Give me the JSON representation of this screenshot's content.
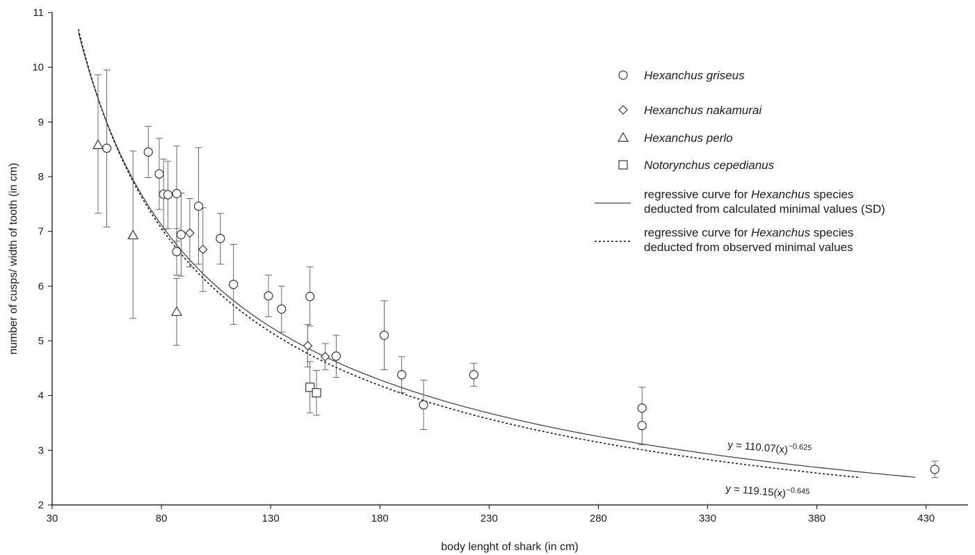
{
  "chart_data": {
    "type": "scatter",
    "title": "",
    "xlabel": "body lenght of shark (in cm)",
    "ylabel": "number of cusps/ width of tooth (in cm)",
    "xlim": [
      30,
      450
    ],
    "ylim": [
      2,
      11
    ],
    "xticks": [
      30,
      80,
      130,
      180,
      230,
      280,
      330,
      380,
      430
    ],
    "yticks": [
      2,
      3,
      4,
      5,
      6,
      7,
      8,
      9,
      10,
      11
    ],
    "grid": false,
    "legend_position": "top-right",
    "series": [
      {
        "name": "Hexanchus griseus",
        "marker": "circle",
        "points": [
          {
            "x": 55,
            "y": 8.52,
            "lo": 7.08,
            "hi": 9.95
          },
          {
            "x": 74,
            "y": 8.45,
            "lo": 7.98,
            "hi": 8.92
          },
          {
            "x": 79,
            "y": 8.05,
            "lo": 7.4,
            "hi": 8.7
          },
          {
            "x": 81,
            "y": 7.68,
            "lo": 7.03,
            "hi": 8.32
          },
          {
            "x": 83,
            "y": 7.67,
            "lo": 7.05,
            "hi": 8.28
          },
          {
            "x": 87,
            "y": 7.69,
            "lo": 6.82,
            "hi": 8.56
          },
          {
            "x": 87,
            "y": 6.63,
            "lo": 6.2,
            "hi": 7.05
          },
          {
            "x": 89,
            "y": 6.94,
            "lo": 6.18,
            "hi": 7.7
          },
          {
            "x": 97,
            "y": 7.46,
            "lo": 6.4,
            "hi": 8.53
          },
          {
            "x": 107,
            "y": 6.87,
            "lo": 6.4,
            "hi": 7.33
          },
          {
            "x": 113,
            "y": 6.03,
            "lo": 5.3,
            "hi": 6.76
          },
          {
            "x": 129,
            "y": 5.82,
            "lo": 5.44,
            "hi": 6.2
          },
          {
            "x": 135,
            "y": 5.58,
            "lo": 5.16,
            "hi": 6.0
          },
          {
            "x": 148,
            "y": 5.81,
            "lo": 5.27,
            "hi": 6.35
          },
          {
            "x": 160,
            "y": 4.72,
            "lo": 4.33,
            "hi": 5.1
          },
          {
            "x": 182,
            "y": 5.1,
            "lo": 4.47,
            "hi": 5.73
          },
          {
            "x": 190,
            "y": 4.38,
            "lo": 4.05,
            "hi": 4.71
          },
          {
            "x": 200,
            "y": 3.83,
            "lo": 3.38,
            "hi": 4.28
          },
          {
            "x": 223,
            "y": 4.38,
            "lo": 4.17,
            "hi": 4.59
          },
          {
            "x": 300,
            "y": 3.77,
            "lo": 3.39,
            "hi": 4.15
          },
          {
            "x": 300,
            "y": 3.45,
            "lo": 3.1,
            "hi": 3.8
          },
          {
            "x": 434,
            "y": 2.65,
            "lo": 2.5,
            "hi": 2.8
          }
        ]
      },
      {
        "name": "Hexanchus nakamurai",
        "marker": "diamond",
        "points": [
          {
            "x": 93,
            "y": 6.97,
            "lo": 6.35,
            "hi": 7.6
          },
          {
            "x": 99,
            "y": 6.67,
            "lo": 5.9,
            "hi": 7.43
          },
          {
            "x": 147,
            "y": 4.91,
            "lo": 4.52,
            "hi": 5.3
          },
          {
            "x": 155,
            "y": 4.71,
            "lo": 4.47,
            "hi": 4.95
          }
        ]
      },
      {
        "name": "Hexanchus perlo",
        "marker": "triangle",
        "points": [
          {
            "x": 51,
            "y": 8.58,
            "lo": 7.33,
            "hi": 9.86
          },
          {
            "x": 67,
            "y": 6.93,
            "lo": 5.41,
            "hi": 8.47
          },
          {
            "x": 87,
            "y": 5.53,
            "lo": 4.92,
            "hi": 6.14
          }
        ]
      },
      {
        "name": "Notorynchus cepedianus",
        "marker": "square",
        "points": [
          {
            "x": 148,
            "y": 4.15,
            "lo": 3.68,
            "hi": 4.62
          },
          {
            "x": 151,
            "y": 4.05,
            "lo": 3.64,
            "hi": 4.46
          }
        ]
      }
    ],
    "curves": [
      {
        "name_prefix": "regressive curve for ",
        "name_italic": "Hexanchus",
        "name_suffix": " species",
        "name_line2": "deducted from calculated minimal values (SD)",
        "style": "solid",
        "a": 110.07,
        "b": -0.625,
        "x_from": 42,
        "x_to": 425,
        "equation_prefix": "y = 110.07(x)",
        "equation_exp": "−0.625"
      },
      {
        "name_prefix": "regressive curve for ",
        "name_italic": "Hexanchus",
        "name_suffix": " species",
        "name_line2": "deducted from observed minimal values",
        "style": "dashed",
        "a": 119.15,
        "b": -0.645,
        "x_from": 42,
        "x_to": 400,
        "equation_prefix": "y = 119.15(x)",
        "equation_exp": "−0.645"
      }
    ]
  }
}
